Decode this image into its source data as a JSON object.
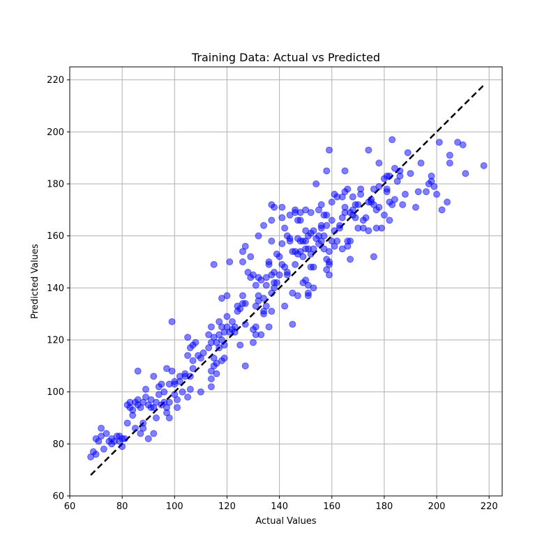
{
  "chart_data": {
    "type": "scatter",
    "title": "Training Data: Actual vs Predicted",
    "xlabel": "Actual Values",
    "ylabel": "Predicted Values",
    "xlim": [
      60,
      225
    ],
    "ylim": [
      60,
      225
    ],
    "xticks": [
      60,
      80,
      100,
      120,
      140,
      160,
      180,
      200,
      220
    ],
    "yticks": [
      60,
      80,
      100,
      120,
      140,
      160,
      180,
      200,
      220
    ],
    "grid": true,
    "colors": {
      "points": "#0000ff",
      "reference_line": "#000000",
      "grid": "#b0b0b0"
    },
    "reference_line": {
      "x": [
        68,
        218
      ],
      "y": [
        68,
        218
      ],
      "style": "dashed"
    },
    "series": [
      {
        "marker": "circle",
        "alpha": 0.5,
        "points": [
          [
            68,
            75
          ],
          [
            69,
            77
          ],
          [
            70,
            82
          ],
          [
            70,
            76
          ],
          [
            71,
            81
          ],
          [
            72,
            83
          ],
          [
            72,
            86
          ],
          [
            73,
            78
          ],
          [
            74,
            84
          ],
          [
            75,
            81
          ],
          [
            76,
            80
          ],
          [
            76,
            82
          ],
          [
            77,
            81
          ],
          [
            78,
            83
          ],
          [
            79,
            81
          ],
          [
            79,
            83
          ],
          [
            80,
            79
          ],
          [
            80,
            82
          ],
          [
            81,
            82
          ],
          [
            82,
            88
          ],
          [
            82,
            95
          ],
          [
            83,
            96
          ],
          [
            83,
            94
          ],
          [
            84,
            93
          ],
          [
            84,
            91
          ],
          [
            85,
            86
          ],
          [
            85,
            96
          ],
          [
            86,
            108
          ],
          [
            86,
            95
          ],
          [
            86,
            97
          ],
          [
            87,
            94
          ],
          [
            87,
            84
          ],
          [
            88,
            88
          ],
          [
            88,
            86
          ],
          [
            88,
            96
          ],
          [
            89,
            98
          ],
          [
            89,
            101
          ],
          [
            90,
            95
          ],
          [
            90,
            82
          ],
          [
            91,
            94
          ],
          [
            91,
            97
          ],
          [
            92,
            106
          ],
          [
            92,
            84
          ],
          [
            92,
            94
          ],
          [
            93,
            90
          ],
          [
            93,
            96
          ],
          [
            94,
            102
          ],
          [
            94,
            99
          ],
          [
            95,
            95
          ],
          [
            95,
            103
          ],
          [
            96,
            96
          ],
          [
            96,
            100
          ],
          [
            97,
            109
          ],
          [
            97,
            92
          ],
          [
            97,
            94
          ],
          [
            98,
            90
          ],
          [
            98,
            103
          ],
          [
            98,
            96
          ],
          [
            99,
            108
          ],
          [
            99,
            127
          ],
          [
            100,
            99
          ],
          [
            100,
            103
          ],
          [
            100,
            104
          ],
          [
            101,
            94
          ],
          [
            101,
            97
          ],
          [
            102,
            106
          ],
          [
            102,
            104
          ],
          [
            103,
            100
          ],
          [
            104,
            107
          ],
          [
            104,
            106
          ],
          [
            105,
            114
          ],
          [
            105,
            121
          ],
          [
            105,
            98
          ],
          [
            106,
            117
          ],
          [
            106,
            106
          ],
          [
            106,
            101
          ],
          [
            107,
            109
          ],
          [
            107,
            112
          ],
          [
            107,
            118
          ],
          [
            108,
            119
          ],
          [
            109,
            114
          ],
          [
            110,
            100
          ],
          [
            110,
            113
          ],
          [
            111,
            115
          ],
          [
            113,
            117
          ],
          [
            113,
            122
          ],
          [
            114,
            125
          ],
          [
            114,
            119
          ],
          [
            114,
            108
          ],
          [
            114,
            102
          ],
          [
            114,
            105
          ],
          [
            115,
            110
          ],
          [
            115,
            121
          ],
          [
            115,
            149
          ],
          [
            115,
            113
          ],
          [
            116,
            111
          ],
          [
            116,
            119
          ],
          [
            116,
            107
          ],
          [
            117,
            117
          ],
          [
            117,
            127
          ],
          [
            117,
            122
          ],
          [
            118,
            136
          ],
          [
            118,
            120
          ],
          [
            118,
            125
          ],
          [
            118,
            112
          ],
          [
            119,
            113
          ],
          [
            119,
            118
          ],
          [
            119,
            123
          ],
          [
            120,
            129
          ],
          [
            120,
            137
          ],
          [
            120,
            125
          ],
          [
            121,
            123
          ],
          [
            121,
            150
          ],
          [
            122,
            124
          ],
          [
            122,
            127
          ],
          [
            123,
            123
          ],
          [
            123,
            125
          ],
          [
            124,
            131
          ],
          [
            124,
            133
          ],
          [
            125,
            118
          ],
          [
            125,
            132
          ],
          [
            126,
            137
          ],
          [
            126,
            150
          ],
          [
            126,
            134
          ],
          [
            126,
            154
          ],
          [
            127,
            110
          ],
          [
            127,
            156
          ],
          [
            127,
            126
          ],
          [
            127,
            134
          ],
          [
            128,
            146
          ],
          [
            129,
            144
          ],
          [
            129,
            152
          ],
          [
            130,
            145
          ],
          [
            130,
            119
          ],
          [
            130,
            124
          ],
          [
            131,
            122
          ],
          [
            131,
            125
          ],
          [
            131,
            133
          ],
          [
            131,
            141
          ],
          [
            132,
            135
          ],
          [
            132,
            137
          ],
          [
            132,
            144
          ],
          [
            132,
            160
          ],
          [
            133,
            122
          ],
          [
            133,
            143
          ],
          [
            134,
            131
          ],
          [
            134,
            130
          ],
          [
            134,
            136
          ],
          [
            134,
            164
          ],
          [
            135,
            133
          ],
          [
            135,
            141
          ],
          [
            135,
            144
          ],
          [
            136,
            125
          ],
          [
            136,
            149
          ],
          [
            136,
            150
          ],
          [
            137,
            166
          ],
          [
            137,
            172
          ],
          [
            137,
            138
          ],
          [
            137,
            145
          ],
          [
            137,
            158
          ],
          [
            137,
            131
          ],
          [
            138,
            140
          ],
          [
            138,
            142
          ],
          [
            138,
            146
          ],
          [
            138,
            171
          ],
          [
            139,
            153
          ],
          [
            139,
            142
          ],
          [
            140,
            145
          ],
          [
            140,
            152
          ],
          [
            141,
            171
          ],
          [
            141,
            157
          ],
          [
            141,
            167
          ],
          [
            141,
            149
          ],
          [
            142,
            133
          ],
          [
            142,
            163
          ],
          [
            142,
            148
          ],
          [
            143,
            145
          ],
          [
            143,
            160
          ],
          [
            143,
            146
          ],
          [
            144,
            159
          ],
          [
            144,
            168
          ],
          [
            144,
            158
          ],
          [
            145,
            126
          ],
          [
            145,
            138
          ],
          [
            145,
            154
          ],
          [
            146,
            170
          ],
          [
            146,
            169
          ],
          [
            146,
            149
          ],
          [
            146,
            154
          ],
          [
            147,
            159
          ],
          [
            147,
            166
          ],
          [
            147,
            153
          ],
          [
            147,
            137
          ],
          [
            148,
            169
          ],
          [
            148,
            166
          ],
          [
            148,
            154
          ],
          [
            148,
            158
          ],
          [
            149,
            142
          ],
          [
            149,
            158
          ],
          [
            149,
            152
          ],
          [
            150,
            162
          ],
          [
            150,
            170
          ],
          [
            150,
            155
          ],
          [
            150,
            143
          ],
          [
            150,
            158
          ],
          [
            151,
            138
          ],
          [
            151,
            141
          ],
          [
            151,
            137
          ],
          [
            151,
            160
          ],
          [
            151,
            155
          ],
          [
            152,
            169
          ],
          [
            152,
            161
          ],
          [
            152,
            148
          ],
          [
            152,
            153
          ],
          [
            153,
            155
          ],
          [
            153,
            162
          ],
          [
            153,
            148
          ],
          [
            153,
            140
          ],
          [
            154,
            180
          ],
          [
            154,
            159
          ],
          [
            155,
            170
          ],
          [
            155,
            157
          ],
          [
            155,
            160
          ],
          [
            156,
            172
          ],
          [
            156,
            163
          ],
          [
            156,
            164
          ],
          [
            156,
            158
          ],
          [
            157,
            160
          ],
          [
            157,
            155
          ],
          [
            157,
            168
          ],
          [
            158,
            185
          ],
          [
            158,
            151
          ],
          [
            158,
            147
          ],
          [
            158,
            164
          ],
          [
            158,
            168
          ],
          [
            159,
            150
          ],
          [
            159,
            193
          ],
          [
            159,
            154
          ],
          [
            159,
            145
          ],
          [
            159,
            149
          ],
          [
            160,
            166
          ],
          [
            160,
            158
          ],
          [
            160,
            173
          ],
          [
            161,
            176
          ],
          [
            161,
            162
          ],
          [
            161,
            156
          ],
          [
            162,
            175
          ],
          [
            162,
            158
          ],
          [
            163,
            164
          ],
          [
            163,
            163
          ],
          [
            164,
            155
          ],
          [
            164,
            175
          ],
          [
            164,
            167
          ],
          [
            165,
            169
          ],
          [
            165,
            177
          ],
          [
            165,
            185
          ],
          [
            165,
            171
          ],
          [
            166,
            178
          ],
          [
            166,
            158
          ],
          [
            166,
            156
          ],
          [
            167,
            151
          ],
          [
            167,
            169
          ],
          [
            167,
            158
          ],
          [
            168,
            175
          ],
          [
            168,
            170
          ],
          [
            168,
            168
          ],
          [
            169,
            167
          ],
          [
            169,
            172
          ],
          [
            170,
            172
          ],
          [
            170,
            163
          ],
          [
            171,
            176
          ],
          [
            171,
            178
          ],
          [
            172,
            166
          ],
          [
            172,
            163
          ],
          [
            173,
            167
          ],
          [
            174,
            173
          ],
          [
            174,
            193
          ],
          [
            174,
            162
          ],
          [
            175,
            174
          ],
          [
            175,
            173
          ],
          [
            176,
            152
          ],
          [
            176,
            178
          ],
          [
            176,
            172
          ],
          [
            177,
            163
          ],
          [
            177,
            170
          ],
          [
            178,
            188
          ],
          [
            178,
            179
          ],
          [
            178,
            171
          ],
          [
            179,
            163
          ],
          [
            180,
            168
          ],
          [
            180,
            182
          ],
          [
            181,
            183
          ],
          [
            181,
            177
          ],
          [
            181,
            178
          ],
          [
            182,
            166
          ],
          [
            182,
            173
          ],
          [
            182,
            183
          ],
          [
            183,
            197
          ],
          [
            183,
            172
          ],
          [
            184,
            186
          ],
          [
            184,
            174
          ],
          [
            185,
            181
          ],
          [
            186,
            183
          ],
          [
            186,
            185
          ],
          [
            187,
            172
          ],
          [
            188,
            176
          ],
          [
            189,
            192
          ],
          [
            190,
            184
          ],
          [
            192,
            171
          ],
          [
            193,
            177
          ],
          [
            194,
            188
          ],
          [
            196,
            177
          ],
          [
            197,
            180
          ],
          [
            198,
            181
          ],
          [
            198,
            183
          ],
          [
            199,
            179
          ],
          [
            200,
            176
          ],
          [
            201,
            196
          ],
          [
            202,
            170
          ],
          [
            204,
            173
          ],
          [
            205,
            188
          ],
          [
            205,
            191
          ],
          [
            208,
            196
          ],
          [
            210,
            195
          ],
          [
            211,
            184
          ],
          [
            218,
            187
          ]
        ]
      }
    ]
  }
}
